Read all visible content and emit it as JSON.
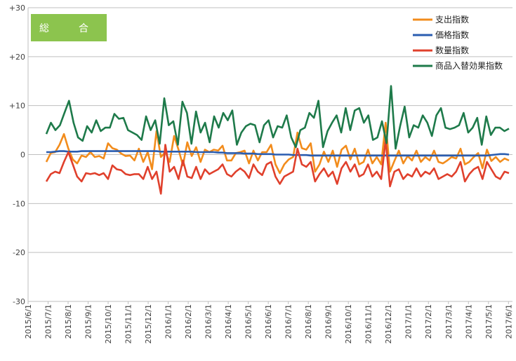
{
  "badge": "総　合",
  "chart_data": {
    "type": "line",
    "ylim": [
      -30,
      30
    ],
    "yticks": [
      "+30",
      "+20",
      "+10",
      "0",
      "-10",
      "-20",
      "-30"
    ],
    "ytick_values": [
      30,
      20,
      10,
      0,
      -10,
      -20,
      -30
    ],
    "grid": "horizontal",
    "legend_position": "top-right",
    "x_tick_labels": [
      "2015/6/1",
      "2015/7/1",
      "2015/8/1",
      "2015/9/1",
      "2015/10/1",
      "2015/11/1",
      "2015/12/1",
      "2016/1/1",
      "2016/2/1",
      "2016/3/1",
      "2016/4/1",
      "2016/5/1",
      "2016/6/1",
      "2016/7/1",
      "2016/8/1",
      "2016/9/1",
      "2016/10/1",
      "2016/11/1",
      "2016/12/1",
      "2017/1/1",
      "2017/2/1",
      "2017/3/1",
      "2017/4/1",
      "2017/5/1",
      "2017/6/1"
    ],
    "series": [
      {
        "name": "支出指数",
        "color": "#f28c1c",
        "values": [
          -1.5,
          0.3,
          0.5,
          2.0,
          4.2,
          1.2,
          -1.0,
          -1.8,
          -0.2,
          -0.5,
          0.5,
          -0.5,
          -0.3,
          -0.8,
          2.3,
          1.3,
          1.0,
          0.2,
          -0.3,
          -0.2,
          -1.2,
          1.2,
          -1.5,
          0.5,
          -3.0,
          4.8,
          -0.5,
          0.5,
          -1.5,
          3.8,
          1.0,
          -2.2,
          2.5,
          -0.3,
          1.5,
          -1.5,
          1.0,
          0.5,
          1.0,
          0.8,
          1.8,
          -1.2,
          -1.2,
          0.3,
          0.5,
          0.8,
          -1.8,
          0.8,
          -1.2,
          0.5,
          0.5,
          2.0,
          -2.0,
          -3.8,
          -2.0,
          -1.0,
          -0.5,
          4.5,
          1.3,
          1.0,
          2.3,
          -3.5,
          -2.0,
          0.6,
          -1.5,
          0.8,
          -2.5,
          1.0,
          1.8,
          -1.0,
          1.2,
          -2.0,
          -1.5,
          1.0,
          -1.8,
          -0.5,
          -2.0,
          6.5,
          -3.5,
          -1.3,
          0.8,
          -1.8,
          -0.3,
          -1.2,
          0.8,
          -1.5,
          -0.5,
          -1.2,
          0.8,
          -1.5,
          -1.8,
          -1.2,
          -0.5,
          -0.8,
          1.2,
          -2.0,
          -1.5,
          -0.5,
          0.3,
          -2.8,
          1.0,
          -1.3,
          -0.5,
          -1.5,
          -0.8,
          -1.2
        ]
      },
      {
        "name": "価格指数",
        "color": "#2a5db0",
        "values": [
          0.5,
          0.5,
          0.6,
          0.7,
          0.7,
          0.6,
          0.6,
          0.6,
          0.7,
          0.7,
          0.7,
          0.7,
          0.7,
          0.7,
          0.7,
          0.7,
          0.7,
          0.7,
          0.7,
          0.7,
          0.7,
          0.7,
          0.7,
          0.7,
          0.7,
          0.7,
          0.6,
          0.6,
          0.6,
          0.6,
          0.6,
          0.6,
          0.6,
          0.6,
          0.5,
          0.5,
          0.5,
          0.5,
          0.5,
          0.4,
          0.4,
          0.3,
          0.3,
          0.3,
          0.3,
          0.2,
          0.2,
          0.2,
          0.1,
          0.1,
          0.1,
          0.1,
          0.0,
          0.0,
          0.0,
          0.0,
          -0.1,
          -0.1,
          -0.1,
          -0.1,
          -0.2,
          -0.2,
          -0.2,
          -0.2,
          -0.2,
          -0.2,
          -0.2,
          -0.2,
          -0.2,
          -0.2,
          -0.2,
          -0.2,
          -0.2,
          -0.2,
          -0.2,
          -0.2,
          -0.2,
          -0.2,
          -0.2,
          -0.2,
          -0.2,
          -0.2,
          -0.2,
          -0.2,
          -0.2,
          -0.2,
          -0.2,
          -0.2,
          -0.2,
          -0.2,
          -0.2,
          -0.2,
          -0.2,
          -0.2,
          -0.2,
          -0.2,
          -0.2,
          -0.2,
          -0.2,
          -0.2,
          -0.2,
          -0.1,
          0.0,
          0.1,
          0.1,
          0.0
        ]
      },
      {
        "name": "数量指数",
        "color": "#e0402c",
        "values": [
          -5.5,
          -4.0,
          -3.5,
          -3.8,
          -1.5,
          0.5,
          -2.0,
          -4.5,
          -5.5,
          -3.8,
          -4.0,
          -3.8,
          -4.2,
          -3.8,
          -5.0,
          -2.2,
          -3.0,
          -3.2,
          -4.0,
          -4.2,
          -4.0,
          -4.0,
          -5.0,
          -2.5,
          -5.0,
          -3.5,
          -8.0,
          2.0,
          -3.5,
          -2.5,
          -5.0,
          -1.2,
          -4.5,
          -4.8,
          -2.5,
          -5.0,
          -3.0,
          -4.0,
          -3.5,
          -3.0,
          -2.0,
          -4.0,
          -4.5,
          -3.5,
          -2.8,
          -3.5,
          -4.8,
          -2.0,
          -3.5,
          -4.2,
          -2.0,
          -1.5,
          -4.5,
          -6.0,
          -4.5,
          -4.0,
          -3.5,
          1.2,
          -2.0,
          -2.5,
          -1.5,
          -5.5,
          -4.0,
          -2.8,
          -4.5,
          -3.5,
          -6.0,
          -2.8,
          -1.5,
          -3.5,
          -2.0,
          -4.5,
          -4.0,
          -2.0,
          -4.5,
          -3.5,
          -5.0,
          3.0,
          -6.5,
          -3.5,
          -3.0,
          -5.0,
          -4.0,
          -4.5,
          -2.8,
          -4.5,
          -3.5,
          -4.0,
          -2.8,
          -5.0,
          -4.5,
          -4.0,
          -4.5,
          -3.5,
          -1.5,
          -5.5,
          -4.0,
          -3.0,
          -2.5,
          -5.0,
          -1.5,
          -3.0,
          -4.5,
          -5.0,
          -3.5,
          -3.8
        ]
      },
      {
        "name": "商品入替効果指数",
        "color": "#1e7a4a",
        "values": [
          4.2,
          6.5,
          5.0,
          6.0,
          8.5,
          11.0,
          6.5,
          3.5,
          2.8,
          5.8,
          4.5,
          7.0,
          4.8,
          5.5,
          5.5,
          8.3,
          7.3,
          7.5,
          5.0,
          4.5,
          4.0,
          3.0,
          7.8,
          5.0,
          7.0,
          2.2,
          11.5,
          6.0,
          6.8,
          2.0,
          10.8,
          8.5,
          2.2,
          8.8,
          4.5,
          6.5,
          2.5,
          7.8,
          5.5,
          8.5,
          7.0,
          9.0,
          2.0,
          4.5,
          5.8,
          6.3,
          6.0,
          2.5,
          6.0,
          7.0,
          3.5,
          5.8,
          5.5,
          8.0,
          3.5,
          1.5,
          5.0,
          5.5,
          8.5,
          7.5,
          11.0,
          1.5,
          4.8,
          6.5,
          8.0,
          4.5,
          9.5,
          5.0,
          9.0,
          9.5,
          6.5,
          8.0,
          3.0,
          3.5,
          6.8,
          2.3,
          14.0,
          1.2,
          5.8,
          9.8,
          3.5,
          6.0,
          5.5,
          8.0,
          6.5,
          3.8,
          8.0,
          9.5,
          5.5,
          5.2,
          5.5,
          6.0,
          8.5,
          4.5,
          5.5,
          7.5,
          2.0,
          7.8,
          4.0,
          5.5,
          5.5,
          4.8,
          5.3
        ]
      }
    ]
  }
}
